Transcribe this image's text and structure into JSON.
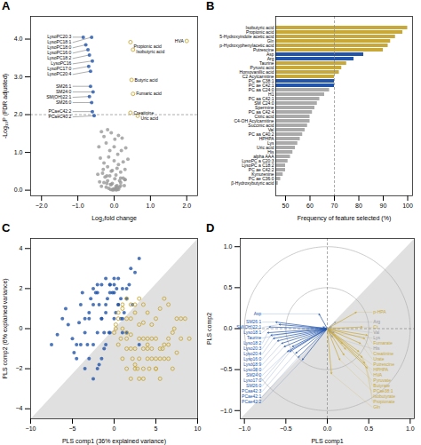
{
  "chart_data": [
    {
      "type": "scatter",
      "title": "A",
      "xlabel": "Log₂fold change",
      "ylabel": "-Log₁₀P (FDR adjusted)",
      "xlim": [
        -2.3,
        2.3
      ],
      "xticks": [
        -2,
        -1,
        0,
        1,
        2
      ],
      "ylim": [
        -0.15,
        4.6
      ],
      "yticks": [
        0,
        1,
        2,
        3,
        4
      ],
      "hlines": [
        {
          "y": 2.0,
          "line_style": "dashed"
        }
      ],
      "series": [
        {
          "color": "#999999",
          "marker": "filled",
          "x": [
            -0.35,
            -0.28,
            -0.18,
            -0.08,
            0.02,
            0.12,
            0.22,
            -0.42,
            -0.22,
            -0.12,
            0.0,
            0.1,
            0.2,
            0.32,
            -0.38,
            -0.28,
            -0.15,
            0.0,
            0.12,
            0.25,
            0.38,
            -0.45,
            -0.32,
            -0.2,
            -0.08,
            0.05,
            0.18,
            0.3,
            -0.4,
            -0.28,
            -0.18,
            -0.05,
            0.08,
            0.18,
            0.3,
            -0.35,
            -0.22,
            -0.1,
            0.05,
            0.15,
            0.28,
            -0.3,
            -0.18,
            -0.05,
            0.08,
            0.18,
            0.3,
            -0.25,
            -0.12,
            0.02,
            0.15,
            0.25,
            -0.2,
            -0.08,
            0.05,
            0.18,
            -0.15,
            -0.02,
            0.1,
            -0.1,
            0.02,
            0.12,
            -0.05,
            0.08,
            -0.02,
            0.05
          ],
          "y": [
            1.55,
            1.42,
            1.6,
            1.52,
            1.35,
            1.45,
            1.38,
            1.15,
            1.25,
            1.05,
            1.15,
            0.95,
            1.05,
            1.12,
            0.85,
            0.72,
            0.88,
            0.78,
            0.68,
            0.75,
            0.82,
            0.42,
            0.45,
            0.38,
            0.5,
            0.4,
            0.32,
            0.28,
            0.22,
            0.2,
            0.25,
            0.18,
            0.12,
            0.2,
            0.28,
            0.1,
            0.08,
            0.15,
            0.05,
            0.08,
            0.12,
            0.55,
            0.62,
            0.52,
            0.58,
            0.48,
            0.55,
            0.35,
            0.38,
            0.3,
            0.25,
            0.32,
            0.18,
            0.15,
            0.1,
            0.12,
            0.05,
            0.03,
            0.07,
            0.02,
            0.04,
            0.02,
            0.01,
            0.015,
            0.008,
            0.01
          ]
        },
        {
          "color": "#2255AA",
          "marker": "filled",
          "labels": [
            "LysoPC20:3",
            "LysoPC18:1",
            "LysoPC18:0",
            "LysoPC16:0",
            "LysoPC18:2",
            "LysoPC16",
            "LysoPC17:0",
            "LysoPC20:4",
            "SM26:1",
            "SM24:0",
            "SM(OH)22:1",
            "SM26:0",
            "PCaeC42:2",
            "PCaeC40:2"
          ],
          "x": [
            -0.85,
            -0.62,
            -0.78,
            -0.72,
            -0.68,
            -0.6,
            -0.7,
            -0.65,
            -0.65,
            -0.58,
            -0.68,
            -0.62,
            -0.6,
            -0.55
          ],
          "y": [
            4.05,
            4.05,
            3.85,
            3.72,
            3.58,
            3.42,
            3.28,
            3.15,
            2.75,
            2.6,
            2.48,
            2.32,
            2.08,
            1.97
          ]
        },
        {
          "color": "#C8A838",
          "marker": "open",
          "labels": [
            "HVA",
            "Propionic acid",
            "Isobutyric acid",
            "Butyric acid",
            "Fumaric acid",
            "Creatinine",
            "Uric acid"
          ],
          "x": [
            2.0,
            0.45,
            0.52,
            0.48,
            0.52,
            0.45,
            0.65
          ],
          "y": [
            3.95,
            3.92,
            3.72,
            2.92,
            2.55,
            2.05,
            1.97
          ]
        }
      ]
    },
    {
      "type": "bar",
      "orientation": "horizontal",
      "title": "B",
      "xlabel": "Frequency of feature selected (%)",
      "xlim": [
        46,
        102
      ],
      "xticks": [
        50,
        60,
        70,
        80,
        90,
        100
      ],
      "vlines": [
        {
          "x": 70,
          "line_style": "dashed"
        }
      ],
      "categories": [
        "Isobutyric acid",
        "Propionic acid",
        "5-Hydroxyindole acetic acid",
        "Gln",
        "p-Hydroxyphenylacetic acid",
        "Putrescine",
        "Asp",
        "Arg",
        "Taurine",
        "Pyruvic acid",
        "Homovanillic acid",
        "C2 Acylcarnitine",
        "PC ae C38:1",
        "PC ae C42:1",
        "PC aa C24:0",
        "H1",
        "PC aa C42:1",
        "SM C24:0",
        "Spermine",
        "PC aa C42:4",
        "Citric acid",
        "C4-OH Acylcarnitine",
        "Succinic acid",
        "Val",
        "PC aa C40:2",
        "HPHPA",
        "Lys",
        "Uric acid",
        "His",
        "alpha AAA",
        "LysoPC a C20:3",
        "LysoPC a C18:2",
        "PC ae C42:2",
        "Kynurenine",
        "PC ae C36:0",
        "β-Hydroxybutyric acid"
      ],
      "values": [
        100,
        98,
        95,
        93,
        92,
        90,
        82,
        78,
        75,
        73,
        72,
        70,
        70,
        70,
        68,
        66,
        64,
        63,
        62,
        61,
        60,
        60,
        59,
        58,
        57,
        56,
        55,
        54,
        53,
        52,
        51,
        50,
        50,
        49,
        48,
        47
      ],
      "colors": [
        "#C8A838",
        "#C8A838",
        "#C8A838",
        "#C8A838",
        "#C8A838",
        "#C8A838",
        "#2255AA",
        "#2255AA",
        "#C8A838",
        "#C8A838",
        "#C8A838",
        "#C8A838",
        "#2255AA",
        "#2255AA",
        "#aaaaaa",
        "#aaaaaa",
        "#aaaaaa",
        "#aaaaaa",
        "#aaaaaa",
        "#aaaaaa",
        "#aaaaaa",
        "#aaaaaa",
        "#aaaaaa",
        "#aaaaaa",
        "#aaaaaa",
        "#aaaaaa",
        "#aaaaaa",
        "#aaaaaa",
        "#aaaaaa",
        "#aaaaaa",
        "#aaaaaa",
        "#aaaaaa",
        "#aaaaaa",
        "#aaaaaa",
        "#aaaaaa",
        "#aaaaaa"
      ]
    },
    {
      "type": "scatter",
      "title": "C",
      "xlabel": "PLS comp1 (36% explained variance)",
      "ylabel": "PLS comp2 (6% explained variance)",
      "xlim": [
        -10,
        10
      ],
      "xticks": [
        -10,
        -5,
        0,
        5,
        10
      ],
      "ylim": [
        -4.5,
        4.5
      ],
      "yticks": [
        -4,
        -2,
        0,
        2,
        4
      ],
      "regions": [
        {
          "points": [
            [
              -10,
              -4.5
            ],
            [
              10,
              -4.5
            ],
            [
              10,
              4.5
            ]
          ],
          "color": "#e0e0e0"
        }
      ],
      "series": [
        {
          "color": "#2255AA",
          "marker": "filled",
          "x": [
            -7.5,
            -6.8,
            -6.2,
            -5.8,
            -5.5,
            -5.0,
            -4.8,
            -4.5,
            -4.2,
            -4.0,
            -3.8,
            -3.5,
            -3.2,
            -3.0,
            -2.8,
            -2.5,
            -2.2,
            -2.0,
            -1.8,
            -1.5,
            -1.2,
            -1.0,
            -0.8,
            -0.5,
            -0.2,
            0.0,
            0.3,
            0.5,
            0.8,
            1.0,
            1.2,
            1.5,
            1.8,
            2.0,
            2.5,
            3.0,
            -4.5,
            -4.0,
            -3.5,
            -3.0,
            -2.5,
            -2.0,
            -1.5,
            -1.0,
            -0.5,
            0.0,
            0.5,
            1.0,
            1.5,
            -3.5,
            -3.0,
            -2.5,
            -2.0,
            -1.5,
            -1.0,
            -0.5,
            0.0,
            0.5,
            1.0,
            -2.5,
            -2.0,
            -1.5,
            -1.0,
            -0.5,
            0.0,
            -1.8,
            -1.2,
            -0.6,
            0.2,
            0.8,
            1.5,
            2.2,
            3.0
          ],
          "y": [
            -0.8,
            -0.3,
            0.5,
            1.0,
            0.2,
            -0.5,
            -1.2,
            -0.8,
            0.3,
            1.2,
            1.8,
            0.5,
            -0.8,
            0.8,
            1.5,
            2.0,
            1.8,
            2.2,
            1.2,
            0.5,
            -0.2,
            0.8,
            1.5,
            2.2,
            1.8,
            2.5,
            2.0,
            1.2,
            0.5,
            -0.2,
            0.8,
            1.5,
            2.2,
            3.0,
            2.8,
            3.5,
            -1.5,
            -0.8,
            -0.2,
            0.5,
            1.2,
            1.8,
            2.2,
            2.5,
            2.2,
            1.8,
            1.2,
            0.5,
            -0.2,
            -2.0,
            -1.5,
            -0.8,
            -0.2,
            0.5,
            1.2,
            1.8,
            2.2,
            2.5,
            2.0,
            -2.5,
            -2.0,
            -1.5,
            -0.8,
            -0.2,
            0.5,
            -1.8,
            -1.0,
            -0.2,
            0.8,
            1.5,
            2.0,
            1.2,
            -0.8
          ]
        },
        {
          "color": "#C8A838",
          "marker": "open",
          "x": [
            0.2,
            0.5,
            1.0,
            1.5,
            2.0,
            2.5,
            3.0,
            3.5,
            4.0,
            4.5,
            5.0,
            5.5,
            6.0,
            6.5,
            7.0,
            7.5,
            8.0,
            8.5,
            1.0,
            1.5,
            2.0,
            2.5,
            3.0,
            3.5,
            4.0,
            4.5,
            5.0,
            5.5,
            6.0,
            6.5,
            7.0,
            7.5,
            0.5,
            1.0,
            1.5,
            2.0,
            2.5,
            3.0,
            3.5,
            4.0,
            4.5,
            5.0,
            5.5,
            6.0,
            6.5,
            1.5,
            2.0,
            2.5,
            3.0,
            3.5,
            4.0,
            4.5,
            5.0,
            5.5,
            0.0,
            0.5,
            1.0,
            1.5,
            2.0,
            2.5,
            3.0,
            3.5,
            4.0,
            0.2,
            0.8,
            1.5,
            2.2,
            2.8,
            3.5,
            4.2,
            5.0,
            5.8,
            6.5,
            7.2,
            8.0,
            9.0
          ],
          "y": [
            0.2,
            0.8,
            1.2,
            0.5,
            -0.3,
            -1.0,
            -0.5,
            0.3,
            -0.8,
            -1.5,
            -2.0,
            -1.5,
            -0.8,
            -1.5,
            -2.0,
            -1.2,
            -0.5,
            0.5,
            0.0,
            -0.5,
            -1.0,
            -1.8,
            -2.5,
            -2.0,
            -1.5,
            -1.0,
            -2.0,
            -2.5,
            -1.5,
            -0.8,
            -0.2,
            0.5,
            0.5,
            1.0,
            1.5,
            1.2,
            0.8,
            0.2,
            -0.5,
            -1.0,
            -0.5,
            0.5,
            1.0,
            1.5,
            1.2,
            -0.2,
            0.5,
            1.2,
            1.5,
            1.2,
            0.8,
            0.2,
            -0.5,
            -1.0,
            -0.2,
            -0.8,
            -1.5,
            -2.0,
            -2.5,
            -2.0,
            -1.5,
            -1.0,
            -0.5,
            0.0,
            -0.5,
            -1.0,
            -1.5,
            -2.0,
            -2.5,
            -2.0,
            -1.5,
            -1.0,
            -0.5,
            0.0,
            0.5,
            -0.5
          ]
        }
      ]
    },
    {
      "type": "biplot",
      "title": "D",
      "xlabel": "PLS comp1",
      "ylabel": "PLS comp2",
      "xlim": [
        -1.05,
        1.05
      ],
      "xticks": [
        -1.0,
        -0.5,
        0.0,
        0.5,
        1.0
      ],
      "ylim": [
        -1.1,
        1.1
      ],
      "yticks": [
        -1.0,
        -0.5,
        0.0,
        0.5,
        1.0
      ],
      "regions": [
        {
          "points": [
            [
              -1.05,
              -1.1
            ],
            [
              1.05,
              -1.1
            ],
            [
              1.05,
              1.1
            ]
          ],
          "color": "#e0e0e0"
        }
      ],
      "circles": [
        0.5,
        1.0
      ],
      "hlines": [
        {
          "y": 0,
          "line_style": "dashed"
        }
      ],
      "vlines": [
        {
          "x": 0,
          "line_style": "dashed"
        }
      ],
      "series": [
        {
          "color": "#2255AA",
          "labels": [
            "SM26:1",
            "SM(OH)22:1",
            "Lyso18:1",
            "Lyso18:2",
            "Lyso20:3",
            "Lyso20:4",
            "Lyso16:0",
            "Lyso18:9",
            "Lyso18:0",
            "Lyso17:0",
            "SM24:0",
            "SM26:0",
            "PCaa42:3",
            "PCae42:1",
            "PCae42:2",
            "Asp",
            "Taurine"
          ],
          "x": [
            -0.62,
            -0.58,
            -0.7,
            -0.72,
            -0.68,
            -0.65,
            -0.6,
            -0.55,
            -0.52,
            -0.48,
            -0.42,
            -0.45,
            -0.38,
            -0.35,
            -0.3,
            -0.1,
            -0.05
          ],
          "y": [
            0.08,
            0.05,
            0.02,
            -0.05,
            -0.08,
            -0.12,
            -0.15,
            -0.18,
            -0.22,
            -0.28,
            -0.22,
            -0.28,
            -0.3,
            -0.35,
            -0.38,
            0.18,
            0.02
          ]
        },
        {
          "color": "#C8A838",
          "labels": [
            "p-HPA",
            "Ct",
            "Fumarate",
            "Creatinine",
            "Urate",
            "HVA",
            "Butyrate",
            "Isobutyrate",
            "Propionate",
            "Putrescine",
            "HPHPA",
            "Pyruvate",
            "PCae38:1",
            "Gln"
          ],
          "x": [
            0.35,
            0.42,
            0.48,
            0.45,
            0.4,
            0.38,
            0.42,
            0.45,
            0.48,
            0.18,
            0.22,
            0.2,
            0.15,
            0.05
          ],
          "y": [
            0.2,
            0.02,
            -0.08,
            -0.12,
            -0.18,
            -0.28,
            -0.35,
            -0.42,
            -0.48,
            -0.18,
            -0.25,
            -0.32,
            -0.38,
            -0.55
          ]
        },
        {
          "color": "#999999",
          "labels": [
            "Arg",
            "Val",
            "Lys",
            "His"
          ],
          "x": [
            0.1,
            0.05,
            0.08,
            0.06
          ],
          "y": [
            0.08,
            0.02,
            -0.05,
            -0.1
          ]
        }
      ]
    }
  ]
}
